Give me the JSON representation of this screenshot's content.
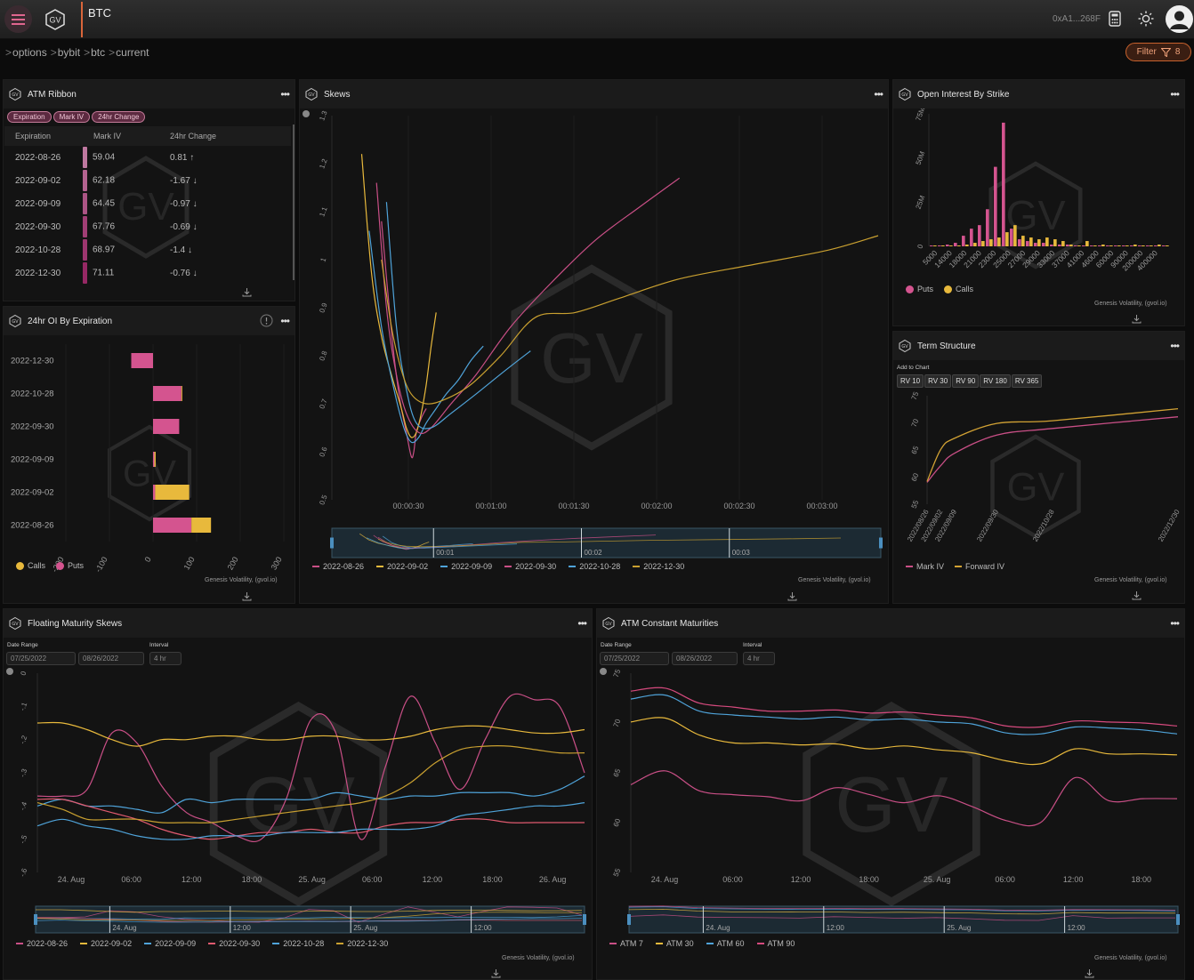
{
  "header": {
    "title": "BTC",
    "wallet": "0xA1...268F"
  },
  "breadcrumb": [
    "options",
    "bybit",
    "btc",
    "current"
  ],
  "filter": {
    "label": "Filter",
    "count": "8"
  },
  "watermark": "GV",
  "credit": "Genesis Volatility, (gvol.io)",
  "atm_ribbon": {
    "title": "ATM Ribbon",
    "chips": [
      "Expiration",
      "Mark IV",
      "24hr Change"
    ],
    "columns": [
      "Expiration",
      "Mark IV",
      "24hr Change"
    ],
    "rows": [
      {
        "expiration": "2022-08-26",
        "iv": "59.04",
        "change": "0.81",
        "dir": "up"
      },
      {
        "expiration": "2022-09-02",
        "iv": "62.18",
        "change": "-1.67",
        "dir": "down"
      },
      {
        "expiration": "2022-09-09",
        "iv": "64.45",
        "change": "-0.97",
        "dir": "down"
      },
      {
        "expiration": "2022-09-30",
        "iv": "67.76",
        "change": "-0.69",
        "dir": "down"
      },
      {
        "expiration": "2022-10-28",
        "iv": "68.97",
        "change": "-1.4",
        "dir": "down"
      },
      {
        "expiration": "2022-12-30",
        "iv": "71.11",
        "change": "-0.76",
        "dir": "down"
      }
    ]
  },
  "oi_expiration": {
    "title": "24hr OI By Expiration",
    "legend": [
      "Calls",
      "Puts"
    ],
    "colors": {
      "calls": "#e8b93c",
      "puts": "#d4548f"
    }
  },
  "skews": {
    "title": "Skews",
    "legend": [
      "2022-08-26",
      "2022-09-02",
      "2022-09-09",
      "2022-09-30",
      "2022-10-28",
      "2022-12-30"
    ],
    "nav_labels": [
      "00:01",
      "00:02",
      "00:03"
    ]
  },
  "oi_strike": {
    "title": "Open Interest By Strike",
    "legend": [
      "Puts",
      "Calls"
    ]
  },
  "term": {
    "title": "Term Structure",
    "add_label": "Add to Chart",
    "buttons": [
      "RV 10",
      "RV 30",
      "RV 90",
      "RV 180",
      "RV 365"
    ],
    "legend": [
      "Mark IV",
      "Forward IV"
    ]
  },
  "fms": {
    "title": "Floating Maturity Skews",
    "date_label": "Date Range",
    "interval_label": "Interval",
    "start": "07/25/2022",
    "end": "08/26/2022",
    "interval": "4 hr",
    "legend": [
      "2022-08-26",
      "2022-09-02",
      "2022-09-09",
      "2022-09-30",
      "2022-10-28",
      "2022-12-30"
    ],
    "nav_labels": [
      "24. Aug",
      "12:00",
      "25. Aug",
      "12:00"
    ]
  },
  "acm": {
    "title": "ATM Constant Maturities",
    "date_label": "Date Range",
    "interval_label": "Interval",
    "start": "07/25/2022",
    "end": "08/26/2022",
    "interval": "4 hr",
    "legend": [
      "ATM 7",
      "ATM 30",
      "ATM 60",
      "ATM 90"
    ],
    "nav_labels": [
      "24. Aug",
      "12:00",
      "25. Aug",
      "12:00"
    ]
  },
  "chart_data": [
    {
      "type": "bar",
      "name": "24hr OI By Expiration",
      "orientation": "horizontal",
      "categories": [
        "2022-12-30",
        "2022-10-28",
        "2022-09-30",
        "2022-09-09",
        "2022-09-02",
        "2022-08-26"
      ],
      "series": [
        {
          "name": "Puts",
          "values": [
            -50,
            65,
            60,
            3,
            5,
            88
          ]
        },
        {
          "name": "Calls",
          "values": [
            0,
            2,
            0,
            3,
            78,
            45
          ]
        }
      ],
      "xticks": [
        "-200",
        "-100",
        "0",
        "100",
        "200",
        "300"
      ],
      "xlim": [
        -200,
        300
      ]
    },
    {
      "type": "line",
      "name": "Skews",
      "yticks": [
        "0.5",
        "0.6",
        "0.7",
        "0.8",
        "0.9",
        "1",
        "1.1",
        "1.2",
        "1.3"
      ],
      "xticks": [
        "00:00:30",
        "00:01:00",
        "00:01:30",
        "00:02:00",
        "00:02:30",
        "00:03:00"
      ],
      "ylim": [
        0.5,
        1.3
      ],
      "xlim": [
        0,
        220
      ],
      "series": [
        {
          "name": "2022-08-26",
          "color": "#c94f86",
          "x": [
            20,
            24,
            27,
            30,
            32,
            33,
            34,
            36,
            38
          ],
          "y": [
            1.08,
            0.85,
            0.72,
            0.64,
            0.59,
            0.6,
            0.64,
            0.67,
            0.69
          ]
        },
        {
          "name": "2022-09-02",
          "color": "#e8b93c",
          "x": [
            12,
            16,
            20,
            24,
            28,
            30,
            32,
            34,
            36,
            38,
            40,
            42
          ],
          "y": [
            1.22,
            0.97,
            0.84,
            0.76,
            0.69,
            0.65,
            0.63,
            0.64,
            0.68,
            0.74,
            0.82,
            0.89
          ]
        },
        {
          "name": "2022-09-09",
          "color": "#4fa3d9",
          "x": [
            15,
            20,
            25,
            29,
            32,
            35,
            38,
            42,
            46,
            51,
            56,
            61
          ],
          "y": [
            1.06,
            0.86,
            0.73,
            0.65,
            0.62,
            0.63,
            0.66,
            0.69,
            0.72,
            0.75,
            0.79,
            0.82
          ]
        },
        {
          "name": "2022-09-30",
          "color": "#c94f86",
          "x": [
            18,
            22,
            26,
            30,
            35,
            40,
            48,
            58,
            72,
            88,
            106,
            124,
            140
          ],
          "y": [
            1.16,
            0.9,
            0.76,
            0.68,
            0.64,
            0.65,
            0.7,
            0.76,
            0.86,
            0.95,
            1.04,
            1.11,
            1.17
          ]
        },
        {
          "name": "2022-10-28",
          "color": "#4fa3d9",
          "x": [
            22,
            26,
            30,
            34,
            40,
            48,
            58,
            70,
            80
          ],
          "y": [
            1.12,
            0.86,
            0.73,
            0.66,
            0.65,
            0.68,
            0.72,
            0.77,
            0.81
          ]
        },
        {
          "name": "2022-12-30",
          "color": "#c9a030",
          "x": [
            20,
            24,
            28,
            32,
            38,
            46,
            56,
            68,
            82,
            98,
            116,
            140,
            170,
            200,
            220
          ],
          "y": [
            1.0,
            0.86,
            0.77,
            0.72,
            0.7,
            0.71,
            0.74,
            0.8,
            0.88,
            0.89,
            0.92,
            0.96,
            0.99,
            1.02,
            1.05
          ]
        }
      ]
    },
    {
      "type": "bar",
      "name": "Open Interest By Strike",
      "yticks": [
        "0",
        "25M",
        "50M",
        "75M"
      ],
      "ylim": [
        0,
        75
      ],
      "xticks": [
        "5000",
        "14000",
        "18000",
        "21000",
        "23000",
        "25000",
        "27000",
        "29000",
        "33000",
        "37000",
        "41000",
        "46000",
        "60000",
        "90000",
        "200000",
        "400000"
      ],
      "series": [
        {
          "name": "Puts",
          "color": "#d4548f",
          "values": [
            0.5,
            0.5,
            1,
            2,
            6,
            10,
            12,
            21,
            45,
            70,
            10,
            4,
            3,
            2,
            2,
            1,
            1,
            1,
            0.5,
            0.5,
            0.5,
            0.5,
            0.5,
            0.5,
            0.5,
            0.5,
            0.5,
            0.5,
            0.5,
            0.5
          ]
        },
        {
          "name": "Calls",
          "color": "#e8b93c",
          "values": [
            0.5,
            0.5,
            0.5,
            0.5,
            1,
            2,
            3,
            4,
            5,
            8,
            12,
            6,
            5,
            4,
            5,
            4,
            3,
            1,
            0.5,
            3,
            0.5,
            1,
            0.5,
            0.5,
            0.5,
            1,
            0.5,
            0.5,
            1,
            0.5
          ]
        }
      ]
    },
    {
      "type": "line",
      "name": "Term Structure",
      "yticks": [
        "55",
        "60",
        "65",
        "70",
        "75"
      ],
      "ylim": [
        55,
        75
      ],
      "xticks": [
        "2022/08/26",
        "2022/09/02",
        "2022/09/09",
        "2022/09/30",
        "2022/10/28",
        "2022/12/30"
      ],
      "series": [
        {
          "name": "Mark IV",
          "color": "#c94f86",
          "x": [
            0,
            7,
            14,
            35,
            63,
            126
          ],
          "y": [
            59.04,
            62.18,
            64.45,
            67.76,
            68.97,
            71.11
          ]
        },
        {
          "name": "Forward IV",
          "color": "#d2a234",
          "x": [
            0,
            7,
            14,
            35,
            63,
            126
          ],
          "y": [
            59.2,
            65.2,
            67.2,
            69.9,
            70.4,
            72.6
          ]
        }
      ]
    },
    {
      "type": "line",
      "name": "Floating Maturity Skews",
      "yticks": [
        "-.6",
        "-.5",
        "-.4",
        "-.3",
        "-.2",
        "-.1",
        "0"
      ],
      "ylim": [
        -0.6,
        0
      ],
      "xticks": [
        "24. Aug",
        "06:00",
        "12:00",
        "18:00",
        "25. Aug",
        "06:00",
        "12:00",
        "18:00",
        "26. Aug"
      ],
      "series": [
        {
          "name": "2022-08-26",
          "color": "#c94f86",
          "values": [
            -0.37,
            -0.37,
            -0.35,
            -0.18,
            -0.21,
            -0.34,
            -0.42,
            -0.45,
            -0.49,
            -0.5,
            -0.38,
            -0.14,
            -0.18,
            -0.5,
            -0.28,
            -0.07,
            -0.21,
            -0.35,
            -0.2,
            -0.07,
            -0.08,
            -0.1,
            -0.3
          ]
        },
        {
          "name": "2022-09-02",
          "color": "#e8b93c",
          "values": [
            -0.15,
            -0.15,
            -0.17,
            -0.2,
            -0.22,
            -0.2,
            -0.2,
            -0.19,
            -0.19,
            -0.2,
            -0.2,
            -0.19,
            -0.19,
            -0.2,
            -0.2,
            -0.19,
            -0.17,
            -0.16,
            -0.16,
            -0.17,
            -0.18,
            -0.18,
            -0.17
          ]
        },
        {
          "name": "2022-09-09",
          "color": "#4fa3d9",
          "values": [
            -0.4,
            -0.38,
            -0.4,
            -0.4,
            -0.41,
            -0.42,
            -0.38,
            -0.39,
            -0.38,
            -0.38,
            -0.38,
            -0.38,
            -0.36,
            -0.37,
            -0.38,
            -0.37,
            -0.37,
            -0.36,
            -0.36,
            -0.36,
            -0.37,
            -0.35,
            -0.31
          ]
        },
        {
          "name": "2022-09-30",
          "color": "#e05a6f",
          "values": [
            -0.38,
            -0.38,
            -0.4,
            -0.42,
            -0.44,
            -0.47,
            -0.49,
            -0.5,
            -0.49,
            -0.48,
            -0.48,
            -0.47,
            -0.48,
            -0.48,
            -0.46,
            -0.45,
            -0.45,
            -0.44,
            -0.44,
            -0.45,
            -0.45,
            -0.45,
            -0.45
          ]
        },
        {
          "name": "2022-10-28",
          "color": "#4fa3d9",
          "values": [
            -0.46,
            -0.44,
            -0.46,
            -0.47,
            -0.49,
            -0.5,
            -0.5,
            -0.49,
            -0.49,
            -0.49,
            -0.48,
            -0.48,
            -0.48,
            -0.47,
            -0.47,
            -0.47,
            -0.46,
            -0.43,
            -0.42,
            -0.41,
            -0.4,
            -0.4,
            -0.39
          ]
        },
        {
          "name": "2022-12-30",
          "color": "#c9a030",
          "values": [
            -0.39,
            -0.41,
            -0.44,
            -0.44,
            -0.44,
            -0.45,
            -0.45,
            -0.45,
            -0.44,
            -0.43,
            -0.42,
            -0.41,
            -0.4,
            -0.39,
            -0.37,
            -0.33,
            -0.27,
            -0.23,
            -0.22,
            -0.22,
            -0.23,
            -0.24,
            -0.24
          ]
        }
      ]
    },
    {
      "type": "line",
      "name": "ATM Constant Maturities",
      "yticks": [
        "55",
        "60",
        "65",
        "70",
        "75"
      ],
      "ylim": [
        55,
        75
      ],
      "xticks": [
        "24. Aug",
        "06:00",
        "12:00",
        "18:00",
        "25. Aug",
        "06:00",
        "12:00",
        "18:00"
      ],
      "series": [
        {
          "name": "ATM 7",
          "color": "#c94f86",
          "values": [
            63.8,
            65.2,
            63.2,
            62.8,
            62.6,
            62.2,
            63.5,
            62.8,
            62.0,
            62.7,
            61.6,
            60.2,
            60.0,
            64.5,
            62.2,
            62.4,
            62.4
          ]
        },
        {
          "name": "ATM 30",
          "color": "#e8b93c",
          "values": [
            70.1,
            70.5,
            68.8,
            68.0,
            68.0,
            67.8,
            67.9,
            67.4,
            67.7,
            67.3,
            67.0,
            66.2,
            65.9,
            67.4,
            66.9,
            66.9,
            66.8
          ]
        },
        {
          "name": "ATM 60",
          "color": "#4fa3d9",
          "values": [
            72.4,
            72.8,
            71.2,
            70.8,
            70.6,
            70.4,
            70.6,
            70.3,
            70.4,
            70.1,
            69.9,
            69.0,
            68.9,
            69.6,
            69.5,
            69.3,
            68.9
          ]
        },
        {
          "name": "ATM 90",
          "color": "#d64a7e",
          "values": [
            73.2,
            73.5,
            72.0,
            71.6,
            71.2,
            71.2,
            71.3,
            71.0,
            71.1,
            70.8,
            70.5,
            69.7,
            69.6,
            70.2,
            70.1,
            70.0,
            69.7
          ]
        }
      ]
    }
  ]
}
